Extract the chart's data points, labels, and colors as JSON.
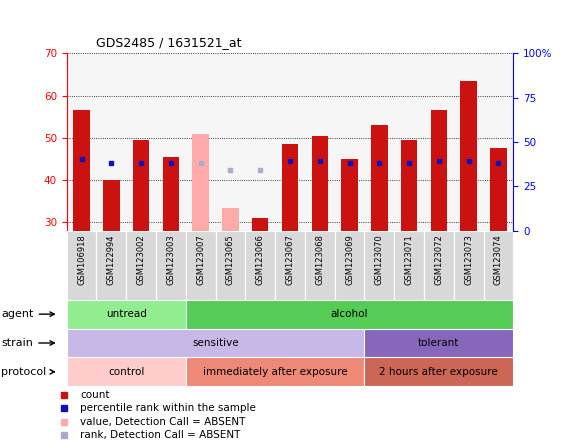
{
  "title": "GDS2485 / 1631521_at",
  "samples": [
    "GSM106918",
    "GSM122994",
    "GSM123002",
    "GSM123003",
    "GSM123007",
    "GSM123065",
    "GSM123066",
    "GSM123067",
    "GSM123068",
    "GSM123069",
    "GSM123070",
    "GSM123071",
    "GSM123072",
    "GSM123073",
    "GSM123074"
  ],
  "count_values": [
    56.5,
    40.0,
    49.5,
    45.5,
    null,
    null,
    31.0,
    48.5,
    50.5,
    45.0,
    53.0,
    49.5,
    56.5,
    63.5,
    47.5
  ],
  "count_absent": [
    null,
    null,
    null,
    null,
    51.0,
    33.5,
    null,
    null,
    null,
    null,
    null,
    null,
    null,
    null,
    null
  ],
  "percentile_values": [
    45.0,
    44.0,
    44.0,
    44.0,
    null,
    null,
    null,
    44.5,
    44.5,
    44.0,
    44.0,
    44.0,
    44.5,
    44.5,
    44.0
  ],
  "percentile_absent": [
    null,
    null,
    null,
    null,
    44.0,
    42.5,
    42.5,
    null,
    null,
    null,
    null,
    null,
    null,
    null,
    null
  ],
  "ylim_left": [
    28,
    70
  ],
  "ylim_right": [
    0,
    100
  ],
  "yticks_left": [
    30,
    40,
    50,
    60,
    70
  ],
  "yticks_right": [
    0,
    25,
    50,
    75,
    100
  ],
  "ytick_labels_right": [
    "0",
    "25",
    "50",
    "75",
    "100%"
  ],
  "agent_groups": [
    {
      "label": "untread",
      "start": 0,
      "end": 4,
      "color": "#90EE90"
    },
    {
      "label": "alcohol",
      "start": 4,
      "end": 15,
      "color": "#55CC55"
    }
  ],
  "strain_groups": [
    {
      "label": "sensitive",
      "start": 0,
      "end": 10,
      "color": "#C8B8E8"
    },
    {
      "label": "tolerant",
      "start": 10,
      "end": 15,
      "color": "#8866BB"
    }
  ],
  "protocol_groups": [
    {
      "label": "control",
      "start": 0,
      "end": 4,
      "color": "#FFCCCC"
    },
    {
      "label": "immediately after exposure",
      "start": 4,
      "end": 10,
      "color": "#EE8877"
    },
    {
      "label": "2 hours after exposure",
      "start": 10,
      "end": 15,
      "color": "#CC6655"
    }
  ],
  "bar_width": 0.55,
  "count_color": "#CC1111",
  "count_absent_color": "#FFAAAA",
  "percentile_color": "#1111BB",
  "percentile_absent_color": "#AAAACC",
  "legend_items": [
    {
      "label": "count",
      "color": "#CC1111"
    },
    {
      "label": "percentile rank within the sample",
      "color": "#1111BB"
    },
    {
      "label": "value, Detection Call = ABSENT",
      "color": "#FFAAAA"
    },
    {
      "label": "rank, Detection Call = ABSENT",
      "color": "#AAAACC"
    }
  ]
}
